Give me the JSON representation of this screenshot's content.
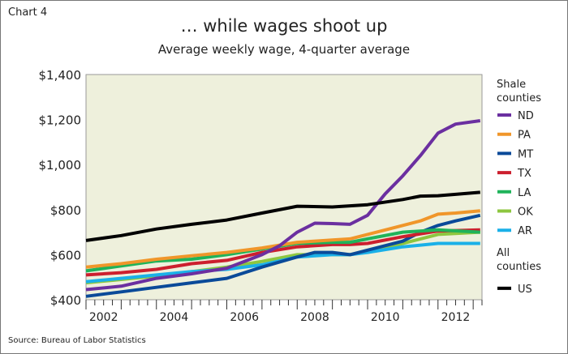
{
  "chart_number": "Chart 4",
  "source": "Source: Bureau of Labor Statistics",
  "chart_data": {
    "type": "line",
    "title": "… while wages shoot up",
    "subtitle": "Average weekly wage, 4-quarter average",
    "xlabel": "",
    "ylabel": "",
    "xlim": [
      2002,
      2013.25
    ],
    "ylim": [
      400,
      1400
    ],
    "yticks": [
      400,
      600,
      800,
      1000,
      1200,
      1400
    ],
    "ytick_labels": [
      "$400",
      "$600",
      "$800",
      "$1,000",
      "$1,200",
      "$1,400"
    ],
    "xtick_labels": [
      "2002",
      "2004",
      "2006",
      "2008",
      "2010",
      "2012"
    ],
    "grid": false,
    "legend_position": "right",
    "legend_groups": [
      "Shale counties",
      "All counties"
    ],
    "series": [
      {
        "name": "ND",
        "group": 0,
        "color": "#6b2fa0",
        "x": [
          2002,
          2003,
          2004,
          2005,
          2006,
          2007,
          2007.5,
          2008,
          2008.5,
          2009,
          2009.5,
          2010,
          2010.5,
          2011,
          2011.5,
          2012,
          2012.5,
          2013.2
        ],
        "values": [
          445,
          460,
          495,
          515,
          540,
          600,
          640,
          700,
          740,
          738,
          735,
          775,
          870,
          950,
          1040,
          1140,
          1180,
          1195
        ]
      },
      {
        "name": "PA",
        "group": 0,
        "color": "#f0962a",
        "x": [
          2002,
          2003,
          2004,
          2005,
          2006,
          2007,
          2008,
          2009,
          2009.5,
          2010,
          2011,
          2011.5,
          2012,
          2012.5,
          2013.2
        ],
        "values": [
          545,
          560,
          580,
          595,
          610,
          630,
          655,
          665,
          670,
          690,
          730,
          750,
          780,
          785,
          795
        ]
      },
      {
        "name": "MT",
        "group": 0,
        "color": "#0a4a99",
        "x": [
          2002,
          2003,
          2004,
          2005,
          2006,
          2007,
          2008,
          2008.5,
          2009,
          2009.5,
          2010,
          2011,
          2011.5,
          2012,
          2012.5,
          2013.2
        ],
        "values": [
          415,
          435,
          455,
          475,
          495,
          545,
          590,
          610,
          610,
          600,
          620,
          660,
          700,
          730,
          750,
          775
        ]
      },
      {
        "name": "TX",
        "group": 0,
        "color": "#cc1f2e",
        "x": [
          2002,
          2003,
          2004,
          2005,
          2006,
          2007,
          2008,
          2009,
          2009.5,
          2010,
          2011,
          2012,
          2013.2
        ],
        "values": [
          510,
          520,
          535,
          560,
          575,
          610,
          635,
          645,
          645,
          650,
          680,
          705,
          710
        ]
      },
      {
        "name": "LA",
        "group": 0,
        "color": "#1fb35a",
        "x": [
          2002,
          2003,
          2004,
          2005,
          2006,
          2007,
          2008,
          2009,
          2009.5,
          2010,
          2011,
          2011.5,
          2012,
          2013.2
        ],
        "values": [
          528,
          550,
          572,
          580,
          600,
          625,
          650,
          655,
          655,
          670,
          700,
          705,
          710,
          700
        ]
      },
      {
        "name": "OK",
        "group": 0,
        "color": "#8dc63f",
        "x": [
          2002,
          2003,
          2004,
          2005,
          2006,
          2007,
          2008,
          2009,
          2009.5,
          2010,
          2011,
          2012,
          2013.2
        ],
        "values": [
          475,
          490,
          505,
          525,
          545,
          570,
          600,
          600,
          600,
          615,
          650,
          690,
          700
        ]
      },
      {
        "name": "AR",
        "group": 0,
        "color": "#1ab0e8",
        "x": [
          2002,
          2003,
          2004,
          2005,
          2006,
          2007,
          2008,
          2009,
          2009.5,
          2010,
          2011,
          2012,
          2013.2
        ],
        "values": [
          480,
          495,
          510,
          525,
          535,
          555,
          590,
          600,
          600,
          610,
          635,
          650,
          650
        ]
      },
      {
        "name": "US",
        "group": 1,
        "color": "#000000",
        "x": [
          2002,
          2003,
          2004,
          2005,
          2006,
          2007,
          2008,
          2009,
          2010,
          2011,
          2011.5,
          2012,
          2012.5,
          2013.2
        ],
        "values": [
          663,
          685,
          714,
          735,
          754,
          785,
          815,
          812,
          822,
          845,
          860,
          862,
          868,
          877
        ]
      }
    ]
  }
}
